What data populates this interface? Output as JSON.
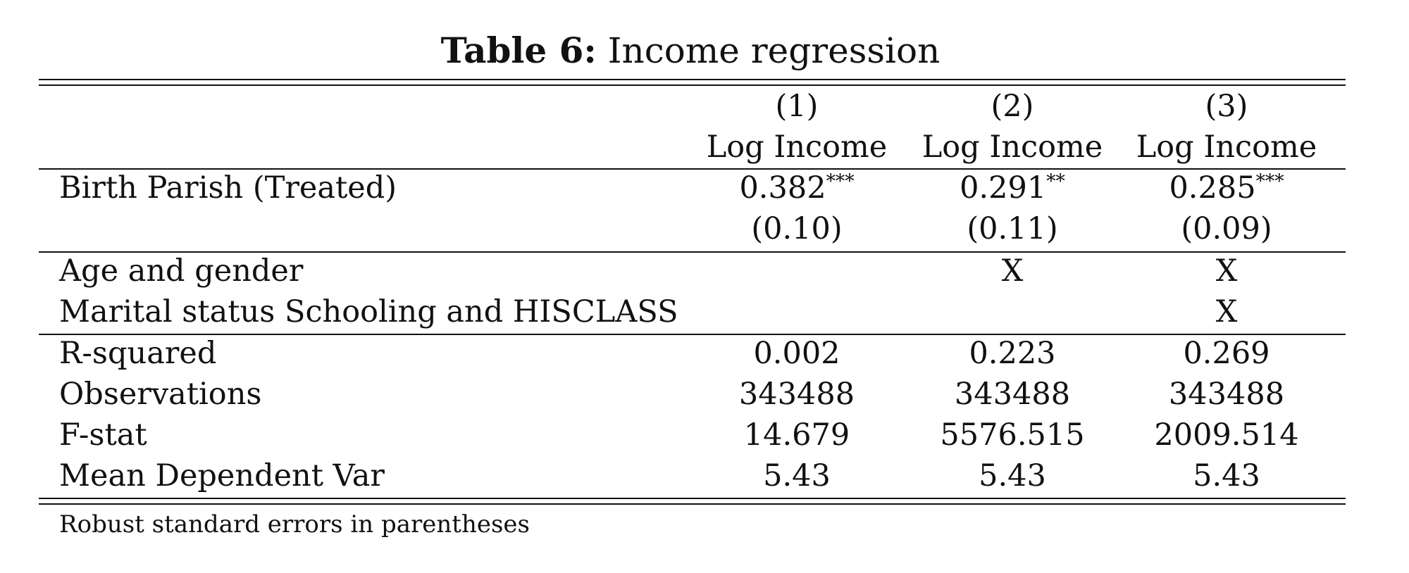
{
  "table": {
    "caption_label": "Table 6:",
    "caption_title": "Income regression",
    "columns": [
      {
        "number": "(1)",
        "dependent": "Log Income"
      },
      {
        "number": "(2)",
        "dependent": "Log Income"
      },
      {
        "number": "(3)",
        "dependent": "Log Income"
      }
    ],
    "coefficient": {
      "label": "Birth Parish (Treated)",
      "estimates": [
        {
          "value": "0.382",
          "stars": "***"
        },
        {
          "value": "0.291",
          "stars": "**"
        },
        {
          "value": "0.285",
          "stars": "***"
        }
      ],
      "standard_errors": [
        "(0.10)",
        "(0.11)",
        "(0.09)"
      ]
    },
    "controls": [
      {
        "label": "Age and gender",
        "marks": [
          "",
          "X",
          "X"
        ]
      },
      {
        "label": "Marital status Schooling and HISCLASS",
        "marks": [
          "",
          "",
          "X"
        ]
      }
    ],
    "statistics": [
      {
        "label": "R-squared",
        "values": [
          "0.002",
          "0.223",
          "0.269"
        ]
      },
      {
        "label": "Observations",
        "values": [
          "343488",
          "343488",
          "343488"
        ]
      },
      {
        "label": "F-stat",
        "values": [
          "14.679",
          "5576.515",
          "2009.514"
        ]
      },
      {
        "label": "Mean Dependent Var",
        "values": [
          "5.43",
          "5.43",
          "5.43"
        ]
      }
    ],
    "note": "Robust standard errors in parentheses"
  }
}
